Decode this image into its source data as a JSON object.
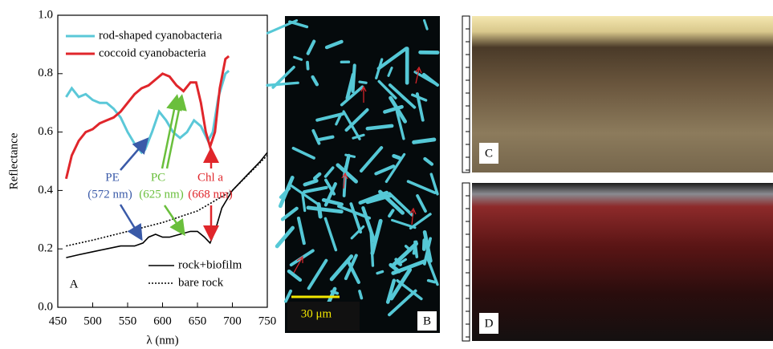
{
  "chart_data": {
    "type": "line",
    "xlabel": "λ (nm)",
    "ylabel": "Reflectance",
    "xlim": [
      450,
      750
    ],
    "xticks": [
      450,
      500,
      550,
      600,
      650,
      700,
      750
    ],
    "ylim": [
      0,
      1
    ],
    "yticks": [
      {
        "value": 0,
        "label": "0.0"
      },
      0.2,
      0.4,
      0.6,
      0.8,
      {
        "value": 1,
        "label": "1.0"
      }
    ],
    "series": [
      {
        "name": "rod-shaped cyanobacteria",
        "color": "#5bc8d8",
        "linestyle": "solid",
        "legend": "upper left",
        "x": [
          462,
          470,
          480,
          490,
          500,
          510,
          520,
          530,
          540,
          550,
          560,
          570,
          575,
          585,
          595,
          605,
          615,
          625,
          635,
          645,
          655,
          665,
          672,
          680,
          690,
          695
        ],
        "values": [
          0.72,
          0.75,
          0.72,
          0.73,
          0.71,
          0.7,
          0.7,
          0.68,
          0.65,
          0.6,
          0.56,
          0.53,
          0.54,
          0.6,
          0.67,
          0.64,
          0.6,
          0.58,
          0.6,
          0.64,
          0.62,
          0.57,
          0.6,
          0.72,
          0.8,
          0.81
        ]
      },
      {
        "name": "coccoid cyanobacteria",
        "color": "#e0262b",
        "linestyle": "solid",
        "legend": "upper left",
        "x": [
          462,
          470,
          480,
          490,
          500,
          510,
          520,
          530,
          540,
          550,
          560,
          570,
          580,
          590,
          600,
          610,
          620,
          630,
          640,
          648,
          655,
          662,
          668,
          675,
          682,
          690,
          695
        ],
        "values": [
          0.44,
          0.52,
          0.57,
          0.6,
          0.61,
          0.63,
          0.64,
          0.65,
          0.67,
          0.7,
          0.73,
          0.75,
          0.76,
          0.78,
          0.8,
          0.79,
          0.76,
          0.74,
          0.77,
          0.77,
          0.7,
          0.6,
          0.55,
          0.6,
          0.75,
          0.85,
          0.86
        ]
      },
      {
        "name": "rock+biofilm",
        "color": "#000000",
        "linestyle": "solid",
        "legend": "lower right",
        "x": [
          462,
          480,
          500,
          520,
          540,
          560,
          572,
          580,
          590,
          600,
          610,
          625,
          640,
          650,
          660,
          668,
          675,
          685,
          700,
          720,
          740,
          750
        ],
        "values": [
          0.17,
          0.18,
          0.19,
          0.2,
          0.21,
          0.21,
          0.22,
          0.24,
          0.25,
          0.24,
          0.24,
          0.25,
          0.26,
          0.26,
          0.24,
          0.22,
          0.26,
          0.34,
          0.4,
          0.45,
          0.5,
          0.53
        ]
      },
      {
        "name": "bare rock",
        "color": "#000000",
        "linestyle": "dotted",
        "legend": "lower right",
        "x": [
          462,
          500,
          550,
          600,
          650,
          700,
          750
        ],
        "values": [
          0.21,
          0.23,
          0.26,
          0.29,
          0.33,
          0.4,
          0.52
        ]
      }
    ],
    "annotations": [
      {
        "text": "PE",
        "color": "#3a5aa8"
      },
      {
        "text": "(572 nm)",
        "color": "#3a5aa8"
      },
      {
        "text": "PC",
        "color": "#6abf3c"
      },
      {
        "text": "(625 nm)",
        "color": "#6abf3c"
      },
      {
        "text": "Chl a",
        "color": "#e0262b"
      },
      {
        "text": "(668 nm)",
        "color": "#e0262b"
      },
      {
        "text": "A",
        "color": "#000000"
      }
    ]
  },
  "panels": [
    {
      "label": "B",
      "scale_bar": "30 μm"
    },
    {
      "label": "C"
    },
    {
      "label": "D"
    }
  ]
}
